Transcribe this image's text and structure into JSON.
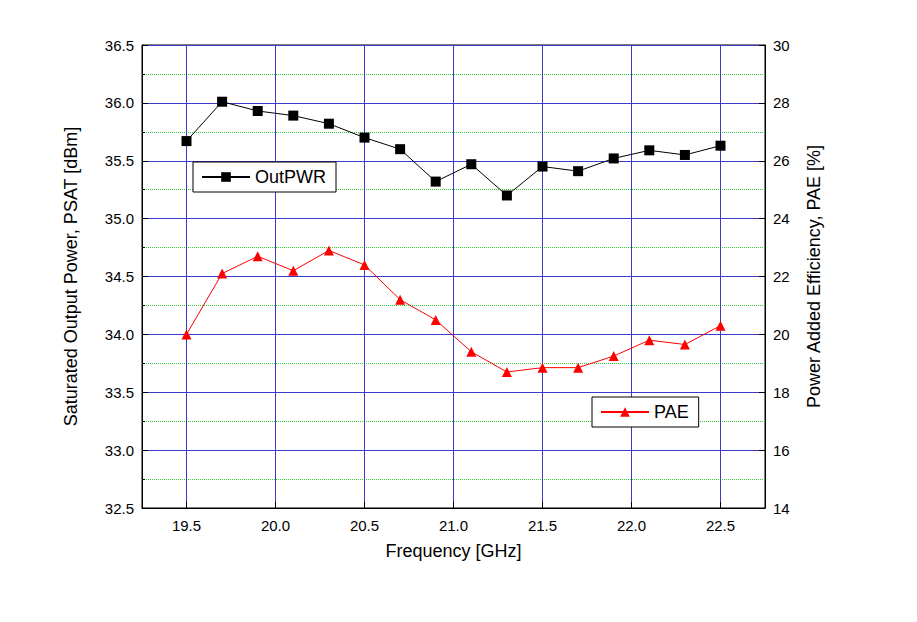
{
  "chart_data": {
    "type": "line",
    "x_label": "Frequency [GHz]",
    "y_label": "Saturated Output Power, PSAT [dBm]",
    "y2_label": "Power Added Efficiency, PAE [%]",
    "xlim": [
      19.25,
      22.75
    ],
    "xticks": [
      19.5,
      {
        "value": 20,
        "label": "20.0"
      },
      20.5,
      {
        "value": 21,
        "label": "21.0"
      },
      21.5,
      {
        "value": 22,
        "label": "22.0"
      },
      22.5
    ],
    "ylim": [
      32.5,
      36.5
    ],
    "yticks": [
      32.5,
      {
        "value": 33,
        "label": "33.0"
      },
      33.5,
      {
        "value": 34,
        "label": "34.0"
      },
      34.5,
      {
        "value": 35,
        "label": "35.0"
      },
      35.5,
      {
        "value": 36,
        "label": "36.0"
      },
      36.5
    ],
    "y2lim": [
      14,
      30
    ],
    "y2ticks": [
      14,
      16,
      18,
      20,
      22,
      24,
      26,
      28,
      30
    ],
    "grid": true,
    "legend": "inside",
    "x": [
      19.5,
      19.7,
      19.9,
      20.1,
      20.3,
      20.5,
      20.7,
      20.9,
      21.1,
      21.3,
      21.5,
      21.7,
      21.9,
      22.1,
      22.3,
      22.5
    ],
    "series": [
      {
        "name": "OutPWR",
        "color": "#000000",
        "marker": "square",
        "line_style": "solid",
        "values": [
          35.67,
          36.01,
          35.93,
          35.89,
          35.82,
          35.7,
          35.6,
          35.32,
          35.47,
          35.2,
          35.45,
          35.41,
          35.52,
          35.59,
          35.55,
          35.63
        ]
      },
      {
        "name": "PAE",
        "color": "#ff0000",
        "marker": "triangle",
        "line_style": "solid",
        "axis": "y2",
        "values": [
          20.0,
          22.1,
          22.7,
          22.2,
          22.9,
          22.4,
          21.2,
          20.5,
          19.4,
          18.7,
          18.85,
          18.85,
          19.25,
          19.8,
          19.65,
          20.3
        ]
      }
    ]
  }
}
